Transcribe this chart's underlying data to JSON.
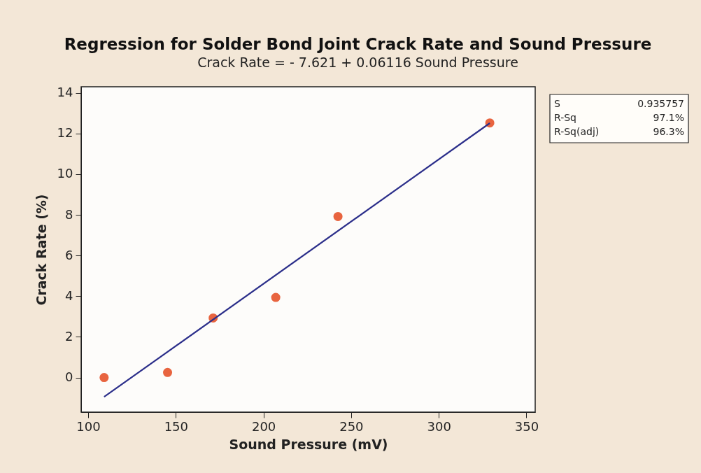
{
  "chart_data": {
    "type": "scatter",
    "title": "Regression for Solder Bond Joint Crack Rate and Sound Pressure",
    "subtitle": "Crack Rate = - 7.621 + 0.06116 Sound Pressure",
    "xlabel": "Sound Pressure (mV)",
    "ylabel": "Crack Rate (%)",
    "annotations": [
      "S",
      "0.935757",
      "R-Sq",
      "97.1%",
      "R-Sq(adj)",
      "96.3%"
    ],
    "xlim": [
      96,
      355
    ],
    "ylim": [
      -1.7,
      14.3
    ],
    "xticks": [
      100,
      150,
      200,
      250,
      300,
      350
    ],
    "yticks": [
      0,
      2,
      4,
      6,
      8,
      10,
      12,
      14
    ],
    "series": [
      {
        "color": "#e8643f",
        "marker": "circle",
        "x": [
          109.1,
          145.3,
          171.3,
          207.0,
          242.5,
          329.1
        ],
        "values": [
          0,
          0.25,
          2.93,
          3.94,
          7.92,
          12.52
        ]
      },
      {
        "type": "line",
        "color": "#2b2e8a",
        "x": [
          109.1,
          329.1
        ],
        "values": [
          -0.95,
          12.51
        ],
        "line_style": "solid"
      }
    ]
  }
}
